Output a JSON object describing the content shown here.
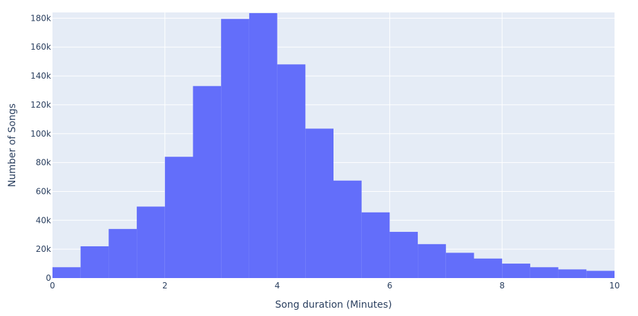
{
  "chart_data": {
    "type": "bar",
    "title": "",
    "xlabel": "Song duration (Minutes)",
    "ylabel": "Number of Songs",
    "xlim": [
      0,
      10
    ],
    "ylim": [
      0,
      184000
    ],
    "bin_width": 0.5,
    "bins": [
      {
        "x0": 0.0,
        "x1": 0.5,
        "value": 7500
      },
      {
        "x0": 0.5,
        "x1": 1.0,
        "value": 22000
      },
      {
        "x0": 1.0,
        "x1": 1.5,
        "value": 34000
      },
      {
        "x0": 1.5,
        "x1": 2.0,
        "value": 49500
      },
      {
        "x0": 2.0,
        "x1": 2.5,
        "value": 84000
      },
      {
        "x0": 2.5,
        "x1": 3.0,
        "value": 133000
      },
      {
        "x0": 3.0,
        "x1": 3.5,
        "value": 179500
      },
      {
        "x0": 3.5,
        "x1": 4.0,
        "value": 183500
      },
      {
        "x0": 4.0,
        "x1": 4.5,
        "value": 148000
      },
      {
        "x0": 4.5,
        "x1": 5.0,
        "value": 103500
      },
      {
        "x0": 5.0,
        "x1": 5.5,
        "value": 67500
      },
      {
        "x0": 5.5,
        "x1": 6.0,
        "value": 45500
      },
      {
        "x0": 6.0,
        "x1": 6.5,
        "value": 32000
      },
      {
        "x0": 6.5,
        "x1": 7.0,
        "value": 23500
      },
      {
        "x0": 7.0,
        "x1": 7.5,
        "value": 17500
      },
      {
        "x0": 7.5,
        "x1": 8.0,
        "value": 13500
      },
      {
        "x0": 8.0,
        "x1": 8.5,
        "value": 10000
      },
      {
        "x0": 8.5,
        "x1": 9.0,
        "value": 7500
      },
      {
        "x0": 9.0,
        "x1": 9.5,
        "value": 6000
      },
      {
        "x0": 9.5,
        "x1": 10.0,
        "value": 5000
      }
    ],
    "x_ticks": [
      {
        "value": 0,
        "label": "0"
      },
      {
        "value": 2,
        "label": "2"
      },
      {
        "value": 4,
        "label": "4"
      },
      {
        "value": 6,
        "label": "6"
      },
      {
        "value": 8,
        "label": "8"
      },
      {
        "value": 10,
        "label": "10"
      }
    ],
    "y_ticks": [
      {
        "value": 0,
        "label": "0"
      },
      {
        "value": 20000,
        "label": "20k"
      },
      {
        "value": 40000,
        "label": "40k"
      },
      {
        "value": 60000,
        "label": "60k"
      },
      {
        "value": 80000,
        "label": "80k"
      },
      {
        "value": 100000,
        "label": "100k"
      },
      {
        "value": 120000,
        "label": "120k"
      },
      {
        "value": 140000,
        "label": "140k"
      },
      {
        "value": 160000,
        "label": "160k"
      },
      {
        "value": 180000,
        "label": "180k"
      }
    ],
    "grid": true,
    "legend": "none",
    "colors": {
      "bar": "#636efa",
      "plot_background": "#e5ecf6",
      "grid": "#ffffff",
      "text": "#2a3f5f",
      "page_background": "#ffffff"
    }
  }
}
